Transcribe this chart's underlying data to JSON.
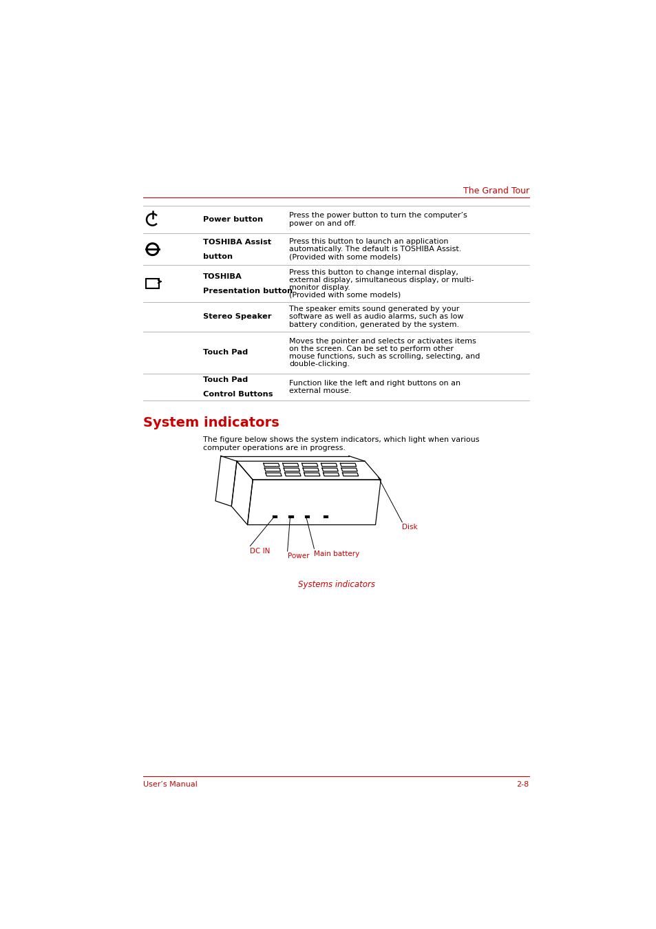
{
  "bg_color": "#ffffff",
  "red_color": "#cc0000",
  "black_color": "#000000",
  "header_text": "The Grand Tour",
  "table_rows": [
    {
      "icon": "power",
      "label": "Power button",
      "label2": "",
      "description": "Press the power button to turn the computer’s power on and off."
    },
    {
      "icon": "assist",
      "label": "TOSHIBA Assist",
      "label2": "button",
      "description": "Press this button to launch an application automatically. The default is TOSHIBA Assist. (Provided with some models)"
    },
    {
      "icon": "presentation",
      "label": "TOSHIBA",
      "label2": "Presentation button",
      "description": "Press this button to change internal display, external display, simultaneous display, or multi-monitor display. (Provided with some models)"
    },
    {
      "icon": "none",
      "label": "Stereo Speaker",
      "label2": "",
      "description": "The speaker emits sound generated by your software as well as audio alarms, such as low battery condition, generated by the system."
    },
    {
      "icon": "none",
      "label": "Touch Pad",
      "label2": "",
      "description": "Moves the pointer and selects or activates items on the screen. Can be set to perform other mouse functions, such as scrolling, selecting, and double-clicking."
    },
    {
      "icon": "none",
      "label": "Touch Pad",
      "label2": "Control Buttons",
      "description": "Function like the left and right buttons on an external mouse."
    }
  ],
  "section_title": "System indicators",
  "section_body_1": "The figure below shows the system indicators, which light when various",
  "section_body_2": "computer operations are in progress.",
  "figure_caption": "Systems indicators",
  "footer_left": "User’s Manual",
  "footer_right": "2-8"
}
